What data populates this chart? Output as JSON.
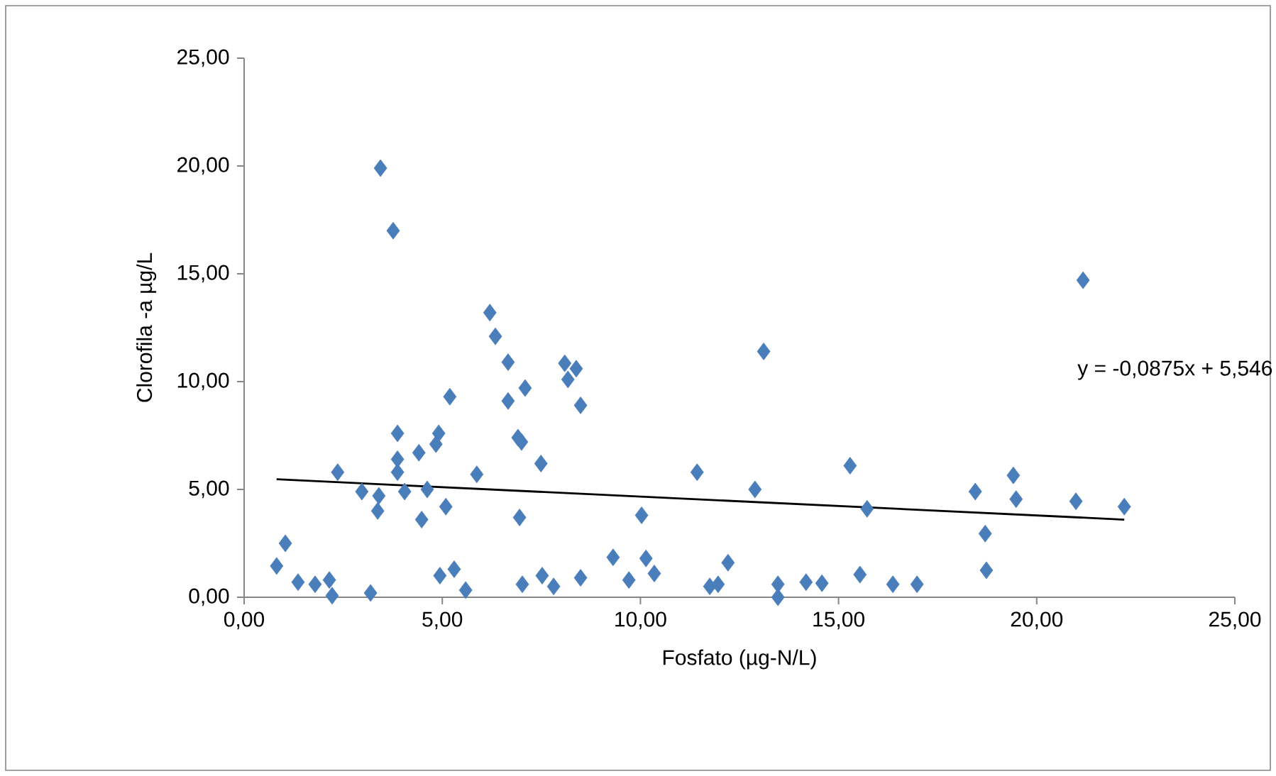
{
  "chart_data": {
    "type": "scatter",
    "xlabel": "Fosfato (µg-N/L)",
    "ylabel": "Clorofila -a µg/L",
    "xlim": [
      0,
      25
    ],
    "ylim": [
      0,
      25
    ],
    "xticks": [
      {
        "value": 0,
        "label": "0,00"
      },
      {
        "value": 5,
        "label": "5,00"
      },
      {
        "value": 10,
        "label": "10,00"
      },
      {
        "value": 15,
        "label": "15,00"
      },
      {
        "value": 20,
        "label": "20,00"
      },
      {
        "value": 25,
        "label": "25,00"
      }
    ],
    "yticks": [
      {
        "value": 0,
        "label": "0,00"
      },
      {
        "value": 5,
        "label": "5,00"
      },
      {
        "value": 10,
        "label": "10,00"
      },
      {
        "value": 15,
        "label": "15,00"
      },
      {
        "value": 20,
        "label": "20,00"
      },
      {
        "value": 25,
        "label": "25,00"
      }
    ],
    "marker": "diamond",
    "series": [
      {
        "color": "#4a7ebb",
        "x": [
          0.82,
          1.04,
          1.36,
          1.79,
          2.15,
          2.22,
          2.36,
          2.97,
          3.19,
          3.37,
          3.4,
          3.44,
          3.76,
          3.87,
          3.87,
          3.87,
          4.05,
          4.41,
          4.48,
          4.62,
          4.84,
          4.91,
          4.94,
          5.09,
          5.19,
          5.3,
          5.59,
          5.87,
          6.2,
          6.34,
          6.66,
          6.66,
          6.91,
          6.95,
          7.0,
          7.02,
          7.09,
          7.49,
          7.52,
          7.81,
          8.09,
          8.17,
          8.38,
          8.49,
          8.49,
          9.31,
          9.71,
          10.03,
          10.14,
          10.35,
          11.43,
          11.75,
          11.96,
          12.21,
          12.89,
          13.11,
          13.47,
          13.47,
          14.18,
          14.58,
          15.29,
          15.54,
          15.72,
          16.37,
          16.98,
          18.45,
          18.7,
          18.73,
          19.41,
          19.48,
          20.99,
          21.17,
          22.21
        ],
        "values": [
          1.45,
          2.5,
          0.7,
          0.6,
          0.8,
          0.07,
          5.8,
          4.9,
          0.2,
          4.0,
          4.7,
          19.9,
          17.0,
          7.6,
          6.4,
          5.8,
          4.9,
          6.7,
          3.6,
          5.0,
          7.1,
          7.6,
          1.0,
          4.2,
          9.3,
          1.3,
          0.33,
          5.7,
          13.2,
          12.1,
          10.9,
          9.1,
          7.4,
          3.7,
          7.2,
          0.6,
          9.7,
          6.2,
          1.0,
          0.5,
          10.85,
          10.1,
          10.6,
          8.9,
          0.9,
          1.85,
          0.8,
          3.8,
          1.8,
          1.1,
          5.8,
          0.5,
          0.6,
          1.6,
          5.0,
          11.4,
          0.6,
          0.0,
          0.7,
          0.65,
          6.1,
          1.05,
          4.1,
          0.6,
          0.6,
          4.9,
          2.95,
          1.25,
          5.65,
          4.55,
          4.45,
          14.7,
          4.2
        ]
      },
      {
        "type": "line",
        "color": "#000000",
        "marker": "none",
        "x": [
          0.82,
          22.21
        ],
        "values": [
          5.47,
          3.6
        ]
      }
    ],
    "annotations": [
      "y = -0,0875x + 5,546"
    ]
  }
}
